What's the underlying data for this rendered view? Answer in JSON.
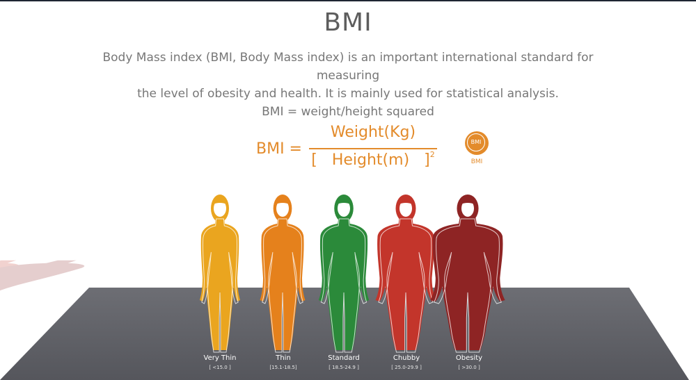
{
  "title": "BMI",
  "description": [
    "Body Mass index (BMI, Body Mass index) is an important international standard for measuring",
    "the level of obesity and health. It is mainly used for statistical analysis.",
    "BMI = weight/height squared"
  ],
  "formula": {
    "lhs": "BMI =",
    "numerator": "Weight(Kg)",
    "denominator": "[   Height(m)   ]",
    "exponent": "2"
  },
  "badge": {
    "icon_text": "BMI",
    "label": "BMI",
    "color": "#e38b2b"
  },
  "categories": [
    {
      "name": "Very Thin",
      "range": "[   <15.0   ]",
      "color": "#eaa51f"
    },
    {
      "name": "Thin",
      "range": "[15.1-18.5]",
      "color": "#e5811c"
    },
    {
      "name": "Standard",
      "range": "[ 18.5-24.9 ]",
      "color": "#2b8a3a"
    },
    {
      "name": "Chubby",
      "range": "[ 25.0-29.9 ]",
      "color": "#c3352b"
    },
    {
      "name": "Obesity",
      "range": "[   >30.0   ]",
      "color": "#8e2424"
    }
  ],
  "colors": {
    "floor": "#5f6066",
    "formula": "#e38b2b",
    "text": "#777777"
  }
}
